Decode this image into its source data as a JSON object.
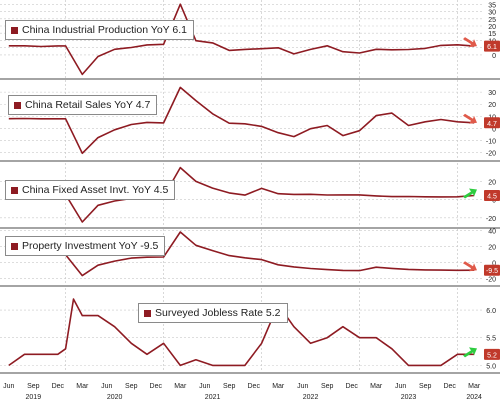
{
  "colors": {
    "series": "#8e1b22",
    "badge": "#c0392b",
    "grid": "#c9c9c9",
    "arrow_down": "#e05a4a",
    "arrow_up": "#2ecc40",
    "axis_text": "#222222"
  },
  "chart_data": [
    {
      "type": "line",
      "legend": "China Industrial Production YoY 6.1",
      "last_value": "6.1",
      "trend_icon": "arrow-down-icon",
      "yticks": [
        "35",
        "30",
        "25",
        "20",
        "15",
        "10",
        "5",
        "0"
      ],
      "ylim": [
        -16,
        38
      ],
      "x": [
        2019.42,
        2019.58,
        2019.75,
        2019.92,
        2020.0,
        2020.17,
        2020.33,
        2020.5,
        2020.67,
        2020.83,
        2021.0,
        2021.17,
        2021.33,
        2021.5,
        2021.67,
        2021.83,
        2022.0,
        2022.17,
        2022.33,
        2022.5,
        2022.67,
        2022.83,
        2023.0,
        2023.17,
        2023.33,
        2023.5,
        2023.67,
        2023.83,
        2024.0,
        2024.17
      ],
      "y": [
        6.3,
        6.3,
        5.8,
        6.2,
        6.2,
        -13.5,
        -1.1,
        3.9,
        5.1,
        6.9,
        7.3,
        35.1,
        9.8,
        8.3,
        3.1,
        3.8,
        4.3,
        4.9,
        0.7,
        3.8,
        6.3,
        2.2,
        1.3,
        3.9,
        3.5,
        3.7,
        4.5,
        6.6,
        7.0,
        6.1
      ]
    },
    {
      "type": "line",
      "legend": "China Retail Sales YoY 4.7",
      "last_value": "4.7",
      "trend_icon": "arrow-down-icon",
      "yticks": [
        "30",
        "20",
        "10",
        "0",
        "-10",
        "-20"
      ],
      "ylim": [
        -26,
        40
      ],
      "x": [
        2019.42,
        2019.58,
        2019.75,
        2019.92,
        2020.0,
        2020.17,
        2020.33,
        2020.5,
        2020.67,
        2020.83,
        2021.0,
        2021.17,
        2021.33,
        2021.5,
        2021.67,
        2021.83,
        2022.0,
        2022.17,
        2022.33,
        2022.5,
        2022.67,
        2022.83,
        2023.0,
        2023.17,
        2023.33,
        2023.5,
        2023.67,
        2023.83,
        2024.0,
        2024.17
      ],
      "y": [
        8.1,
        8.2,
        8.0,
        8.0,
        8.0,
        -20.5,
        -7.5,
        -1.1,
        3.3,
        5.0,
        4.6,
        33.9,
        23.0,
        12.1,
        4.4,
        3.9,
        1.7,
        -3.5,
        -6.7,
        -0.2,
        2.5,
        -5.9,
        -1.8,
        10.6,
        12.7,
        2.5,
        5.5,
        7.4,
        5.5,
        4.7
      ]
    },
    {
      "type": "line",
      "legend": "China Fixed Asset Invt. YoY 4.5",
      "last_value": "4.5",
      "trend_icon": "arrow-up-icon",
      "yticks": [
        "20",
        "0",
        "-20"
      ],
      "ylim": [
        -30,
        40
      ],
      "x": [
        2019.42,
        2019.58,
        2019.75,
        2019.92,
        2020.0,
        2020.17,
        2020.33,
        2020.5,
        2020.67,
        2020.83,
        2021.0,
        2021.17,
        2021.33,
        2021.5,
        2021.67,
        2021.83,
        2022.0,
        2022.17,
        2022.33,
        2022.5,
        2022.67,
        2022.83,
        2023.0,
        2023.17,
        2023.33,
        2023.5,
        2023.67,
        2023.83,
        2024.0,
        2024.17
      ],
      "y": [
        5.4,
        5.5,
        5.3,
        5.2,
        5.4,
        -24.5,
        -6.3,
        -1.6,
        1.3,
        2.9,
        2.9,
        35.0,
        19.9,
        12.6,
        7.3,
        4.9,
        12.2,
        6.4,
        5.7,
        5.8,
        5.0,
        5.1,
        5.1,
        4.0,
        3.2,
        3.4,
        3.0,
        2.9,
        3.0,
        4.5
      ]
    },
    {
      "type": "line",
      "legend": "Property Investment YoY -9.5",
      "last_value": "-9.5",
      "trend_icon": "arrow-down-icon",
      "yticks": [
        "40",
        "20",
        "0",
        "-20"
      ],
      "ylim": [
        -28,
        42
      ],
      "x": [
        2019.42,
        2019.58,
        2019.75,
        2019.92,
        2020.0,
        2020.17,
        2020.33,
        2020.5,
        2020.67,
        2020.83,
        2021.0,
        2021.17,
        2021.33,
        2021.5,
        2021.67,
        2021.83,
        2022.0,
        2022.17,
        2022.33,
        2022.5,
        2022.67,
        2022.83,
        2023.0,
        2023.17,
        2023.33,
        2023.5,
        2023.67,
        2023.83,
        2024.0,
        2024.17
      ],
      "y": [
        10.1,
        10.0,
        10.5,
        9.9,
        9.9,
        -16.3,
        -3.3,
        1.9,
        5.6,
        6.8,
        7.0,
        38.3,
        21.6,
        15.0,
        8.8,
        6.0,
        3.7,
        -2.7,
        -5.4,
        -7.4,
        -8.8,
        -9.8,
        -10.0,
        -5.8,
        -7.2,
        -8.5,
        -9.1,
        -9.4,
        -9.6,
        -9.5
      ]
    },
    {
      "type": "line",
      "legend": "Surveyed Jobless Rate 5.2",
      "last_value": "5.2",
      "trend_icon": "arrow-up-icon",
      "yticks": [
        "6.0",
        "5.5",
        "5.0"
      ],
      "ylim": [
        4.88,
        6.4
      ],
      "x": [
        2019.42,
        2019.58,
        2019.75,
        2019.92,
        2020.0,
        2020.08,
        2020.17,
        2020.33,
        2020.5,
        2020.67,
        2020.83,
        2021.0,
        2021.17,
        2021.33,
        2021.5,
        2021.67,
        2021.83,
        2022.0,
        2022.17,
        2022.33,
        2022.5,
        2022.67,
        2022.83,
        2023.0,
        2023.17,
        2023.33,
        2023.5,
        2023.67,
        2023.83,
        2024.0,
        2024.17
      ],
      "y": [
        5.0,
        5.2,
        5.2,
        5.2,
        5.3,
        6.2,
        5.9,
        5.9,
        5.7,
        5.4,
        5.2,
        5.4,
        5.0,
        5.1,
        5.0,
        5.0,
        5.0,
        5.4,
        6.1,
        5.7,
        5.4,
        5.5,
        5.7,
        5.5,
        5.5,
        5.3,
        5.0,
        5.0,
        5.0,
        5.2,
        5.2
      ]
    }
  ],
  "x_axis": {
    "months": [
      "Jun",
      "Sep",
      "Dec",
      "Mar",
      "Jun",
      "Sep",
      "Dec",
      "Mar",
      "Jun",
      "Sep",
      "Dec",
      "Mar",
      "Jun",
      "Sep",
      "Dec",
      "Mar",
      "Jun",
      "Sep",
      "Dec",
      "Mar"
    ],
    "years": [
      "2019",
      "2020",
      "2021",
      "2022",
      "2023",
      "2024"
    ]
  }
}
